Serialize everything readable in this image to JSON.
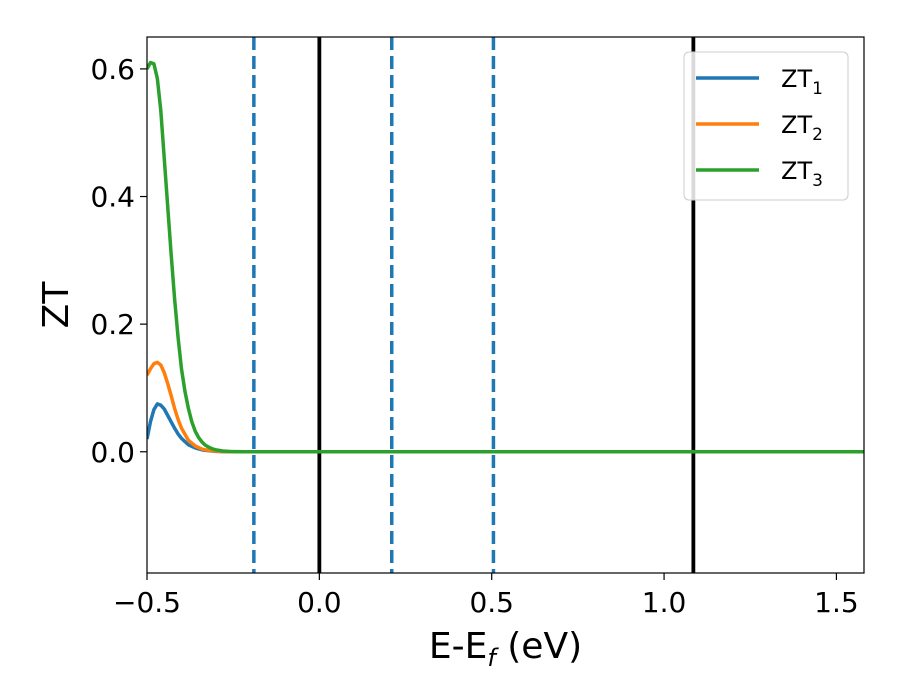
{
  "chart_data": {
    "type": "line",
    "xlabel": "E-E",
    "xlabel_sub": "f",
    "xlabel_unit": "(eV)",
    "ylabel": "ZT",
    "xlim": [
      -0.5,
      1.58
    ],
    "ylim": [
      -0.19,
      0.65
    ],
    "xticks": [
      -0.5,
      0.0,
      0.5,
      1.0,
      1.5
    ],
    "xtick_labels": [
      "−0.5",
      "0.0",
      "0.5",
      "1.0",
      "1.5"
    ],
    "yticks": [
      0.0,
      0.2,
      0.4,
      0.6
    ],
    "ytick_labels": [
      "0.0",
      "0.2",
      "0.4",
      "0.6"
    ],
    "legend_position": "top-right",
    "grid": false,
    "series": [
      {
        "name": "ZT",
        "name_sub": "1",
        "color": "#1f77b4",
        "x": [
          -0.5,
          -0.49,
          -0.48,
          -0.47,
          -0.46,
          -0.45,
          -0.44,
          -0.43,
          -0.42,
          -0.41,
          -0.4,
          -0.38,
          -0.36,
          -0.34,
          -0.32,
          -0.3,
          -0.28,
          -0.26,
          -0.24,
          -0.22,
          -0.2,
          -0.15,
          0.0,
          0.5,
          1.0,
          1.58
        ],
        "y": [
          0.02,
          0.047,
          0.066,
          0.075,
          0.073,
          0.067,
          0.057,
          0.047,
          0.037,
          0.028,
          0.021,
          0.011,
          0.006,
          0.003,
          0.0015,
          0.0007,
          0.0003,
          0.0001,
          0.0,
          0.0,
          0.0,
          0.0,
          0.0,
          0.0,
          0.0,
          0.0
        ]
      },
      {
        "name": "ZT",
        "name_sub": "2",
        "color": "#ff7f0e",
        "x": [
          -0.5,
          -0.49,
          -0.48,
          -0.47,
          -0.46,
          -0.45,
          -0.44,
          -0.43,
          -0.42,
          -0.41,
          -0.4,
          -0.38,
          -0.36,
          -0.34,
          -0.32,
          -0.3,
          -0.28,
          -0.26,
          -0.24,
          -0.22,
          -0.2,
          -0.15,
          0.0,
          0.5,
          1.0,
          1.58
        ],
        "y": [
          0.12,
          0.13,
          0.138,
          0.14,
          0.136,
          0.124,
          0.107,
          0.088,
          0.068,
          0.051,
          0.037,
          0.018,
          0.009,
          0.004,
          0.002,
          0.001,
          0.0005,
          0.0002,
          0.0001,
          0.0,
          0.0,
          0.0,
          0.0,
          0.0,
          0.0,
          0.0
        ]
      },
      {
        "name": "ZT",
        "name_sub": "3",
        "color": "#2ca02c",
        "x": [
          -0.5,
          -0.49,
          -0.48,
          -0.47,
          -0.46,
          -0.45,
          -0.44,
          -0.43,
          -0.42,
          -0.41,
          -0.4,
          -0.39,
          -0.38,
          -0.37,
          -0.36,
          -0.35,
          -0.34,
          -0.33,
          -0.32,
          -0.31,
          -0.3,
          -0.28,
          -0.26,
          -0.24,
          -0.22,
          -0.2,
          -0.15,
          0.0,
          0.5,
          1.0,
          1.58
        ],
        "y": [
          0.6,
          0.61,
          0.608,
          0.585,
          0.535,
          0.46,
          0.385,
          0.31,
          0.24,
          0.18,
          0.13,
          0.095,
          0.068,
          0.047,
          0.032,
          0.022,
          0.015,
          0.01,
          0.007,
          0.0045,
          0.003,
          0.0012,
          0.0005,
          0.0002,
          0.0001,
          0.0,
          0.0,
          0.0,
          0.0,
          0.0,
          0.0
        ]
      }
    ],
    "vlines": [
      {
        "x": -0.19,
        "style": "dashed",
        "color": "#1f77b4"
      },
      {
        "x": 0.0,
        "style": "solid",
        "color": "#000000"
      },
      {
        "x": 0.21,
        "style": "dashed",
        "color": "#1f77b4"
      },
      {
        "x": 0.505,
        "style": "dashed",
        "color": "#1f77b4"
      },
      {
        "x": 1.085,
        "style": "solid",
        "color": "#000000"
      }
    ]
  }
}
